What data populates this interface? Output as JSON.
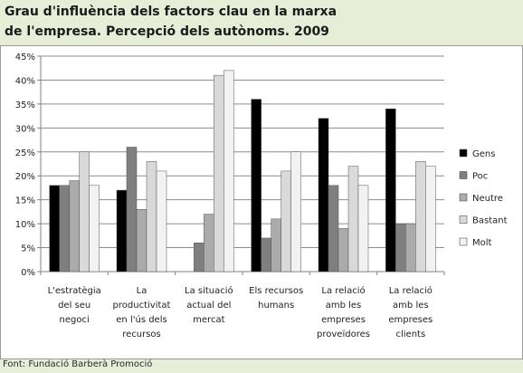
{
  "title_lines": [
    "Grau d'influència dels factors clau en la marxa",
    "de l'empresa. Percepció dels autònoms. 2009"
  ],
  "source": "Font: Fundació Barberà Promoció",
  "chart_data": {
    "type": "bar",
    "title": "Grau d'influència dels factors clau en la marxa de l'empresa. Percepció dels autònoms. 2009",
    "categories": [
      [
        "L'estratègia",
        "del seu",
        "negoci"
      ],
      [
        "La",
        "productivitat",
        "en l'ús dels",
        "recursos"
      ],
      [
        "La situació",
        "actual del",
        "mercat"
      ],
      [
        "Els recursos",
        "humans"
      ],
      [
        "La relació",
        "amb les",
        "empreses",
        "proveïdores"
      ],
      [
        "La relació",
        "amb les",
        "empreses",
        "clients"
      ]
    ],
    "series": [
      {
        "name": "Gens",
        "color": "#000000",
        "values": [
          18,
          17,
          0,
          36,
          32,
          34
        ]
      },
      {
        "name": "Poc",
        "color": "#7f7f7f",
        "values": [
          18,
          26,
          6,
          7,
          18,
          10
        ]
      },
      {
        "name": "Neutre",
        "color": "#ababab",
        "values": [
          19,
          13,
          12,
          11,
          9,
          10
        ]
      },
      {
        "name": "Bastant",
        "color": "#d9d9d9",
        "values": [
          25,
          23,
          41,
          21,
          22,
          23
        ]
      },
      {
        "name": "Molt",
        "color": "#f2f2f2",
        "values": [
          18,
          21,
          42,
          25,
          18,
          22
        ]
      }
    ],
    "ylim": [
      0,
      45
    ],
    "yticks": [
      "0%",
      "5%",
      "10%",
      "15%",
      "20%",
      "25%",
      "30%",
      "35%",
      "40%",
      "45%"
    ],
    "grid": true,
    "legend_position": "right"
  }
}
